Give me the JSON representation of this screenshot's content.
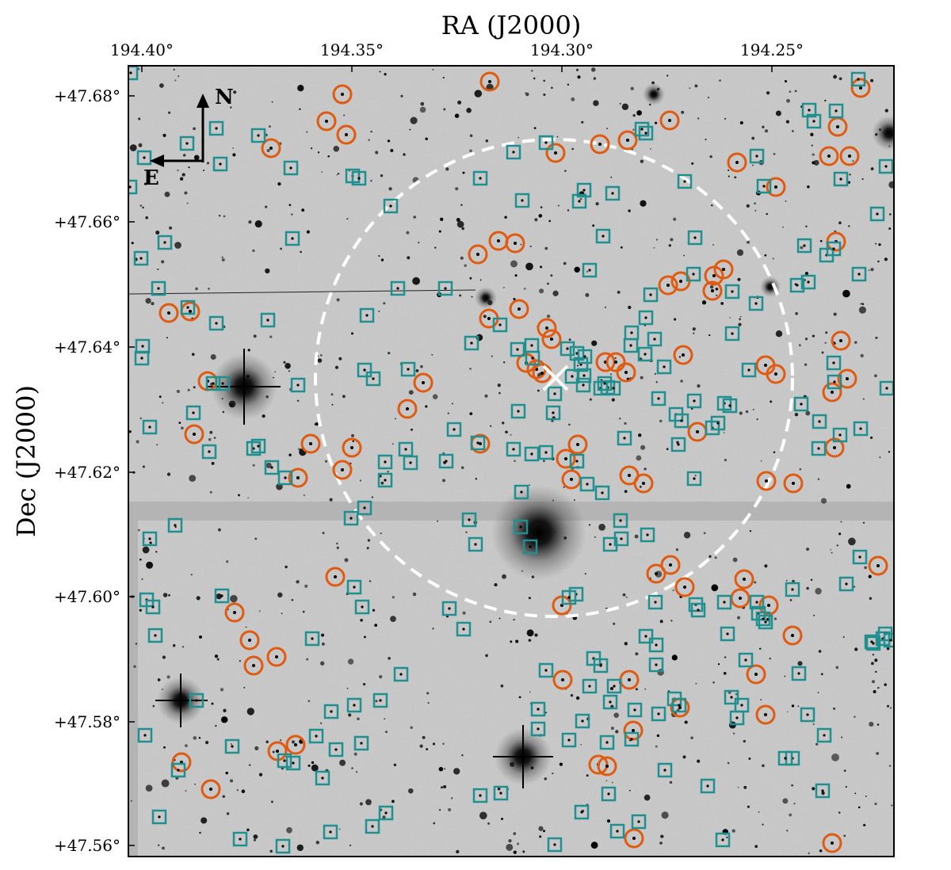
{
  "figure": {
    "x_axis_title": "RA (J2000)",
    "y_axis_title": "Dec (J2000)",
    "x_ticks": [
      "194.40°",
      "194.35°",
      "194.30°",
      "194.25°"
    ],
    "y_ticks": [
      "+47.68°",
      "+47.66°",
      "+47.64°",
      "+47.62°",
      "+47.60°",
      "+47.58°",
      "+47.56°"
    ],
    "compass": {
      "north": "N",
      "east": "E"
    }
  },
  "colors": {
    "circle_marker": "#e05a10",
    "square_marker": "#1f8f8f",
    "field_circle": "#ffffff",
    "center_cross": "#ffffff",
    "image_background": "#c9c9c9",
    "chip_gap": "#b4b4b4"
  },
  "markers": {
    "circles": [
      [
        618,
        103
      ],
      [
        432,
        119
      ],
      [
        412,
        153
      ],
      [
        437,
        170
      ],
      [
        342,
        187
      ],
      [
        845,
        152
      ],
      [
        792,
        177
      ],
      [
        757,
        182
      ],
      [
        701,
        193
      ],
      [
        1086,
        111
      ],
      [
        1057,
        160
      ],
      [
        1046,
        197
      ],
      [
        1072,
        197
      ],
      [
        979,
        236
      ],
      [
        930,
        205
      ],
      [
        629,
        304
      ],
      [
        650,
        307
      ],
      [
        603,
        321
      ],
      [
        843,
        360
      ],
      [
        859,
        355
      ],
      [
        901,
        348
      ],
      [
        913,
        340
      ],
      [
        899,
        367
      ],
      [
        1055,
        305
      ],
      [
        655,
        390
      ],
      [
        617,
        402
      ],
      [
        213,
        395
      ],
      [
        240,
        393
      ],
      [
        690,
        414
      ],
      [
        696,
        428
      ],
      [
        1061,
        430
      ],
      [
        862,
        448
      ],
      [
        664,
        458
      ],
      [
        677,
        466
      ],
      [
        684,
        471
      ],
      [
        764,
        457
      ],
      [
        777,
        457
      ],
      [
        790,
        470
      ],
      [
        966,
        461
      ],
      [
        979,
        472
      ],
      [
        534,
        483
      ],
      [
        1050,
        495
      ],
      [
        1069,
        478
      ],
      [
        262,
        481
      ],
      [
        514,
        516
      ],
      [
        245,
        548
      ],
      [
        392,
        560
      ],
      [
        444,
        565
      ],
      [
        606,
        560
      ],
      [
        729,
        561
      ],
      [
        714,
        579
      ],
      [
        721,
        605
      ],
      [
        880,
        545
      ],
      [
        1053,
        565
      ],
      [
        432,
        593
      ],
      [
        376,
        603
      ],
      [
        794,
        600
      ],
      [
        812,
        610
      ],
      [
        967,
        607
      ],
      [
        1001,
        610
      ],
      [
        423,
        728
      ],
      [
        828,
        724
      ],
      [
        846,
        713
      ],
      [
        864,
        741
      ],
      [
        939,
        731
      ],
      [
        934,
        755
      ],
      [
        970,
        764
      ],
      [
        709,
        764
      ],
      [
        1108,
        714
      ],
      [
        296,
        773
      ],
      [
        315,
        808
      ],
      [
        349,
        829
      ],
      [
        320,
        840
      ],
      [
        1000,
        802
      ],
      [
        954,
        851
      ],
      [
        710,
        858
      ],
      [
        794,
        858
      ],
      [
        858,
        893
      ],
      [
        966,
        902
      ],
      [
        799,
        922
      ],
      [
        350,
        948
      ],
      [
        373,
        940
      ],
      [
        229,
        962
      ],
      [
        755,
        965
      ],
      [
        766,
        967
      ],
      [
        266,
        996
      ],
      [
        800,
        1058
      ],
      [
        1050,
        1064
      ]
    ],
    "squares": [
      [
        165,
        92
      ],
      [
        273,
        162
      ],
      [
        236,
        181
      ],
      [
        182,
        199
      ],
      [
        278,
        207
      ],
      [
        164,
        236
      ],
      [
        326,
        171
      ],
      [
        367,
        212
      ],
      [
        445,
        222
      ],
      [
        453,
        225
      ],
      [
        493,
        260
      ],
      [
        648,
        192
      ],
      [
        689,
        180
      ],
      [
        606,
        225
      ],
      [
        659,
        253
      ],
      [
        731,
        254
      ],
      [
        737,
        240
      ],
      [
        773,
        244
      ],
      [
        761,
        298
      ],
      [
        744,
        341
      ],
      [
        810,
        163
      ],
      [
        815,
        168
      ],
      [
        864,
        229
      ],
      [
        955,
        197
      ],
      [
        1021,
        139
      ],
      [
        1055,
        140
      ],
      [
        1027,
        153
      ],
      [
        1083,
        100
      ],
      [
        1118,
        210
      ],
      [
        964,
        235
      ],
      [
        1061,
        226
      ],
      [
        1107,
        270
      ],
      [
        1015,
        310
      ],
      [
        1043,
        322
      ],
      [
        1052,
        314
      ],
      [
        1084,
        346
      ],
      [
        1006,
        360
      ],
      [
        1020,
        356
      ],
      [
        877,
        300
      ],
      [
        875,
        346
      ],
      [
        924,
        368
      ],
      [
        821,
        372
      ],
      [
        502,
        364
      ],
      [
        562,
        364
      ],
      [
        369,
        301
      ],
      [
        208,
        306
      ],
      [
        178,
        326
      ],
      [
        200,
        364
      ],
      [
        237,
        388
      ],
      [
        273,
        408
      ],
      [
        338,
        404
      ],
      [
        463,
        398
      ],
      [
        180,
        437
      ],
      [
        179,
        452
      ],
      [
        269,
        484
      ],
      [
        281,
        484
      ],
      [
        376,
        486
      ],
      [
        460,
        467
      ],
      [
        471,
        478
      ],
      [
        515,
        466
      ],
      [
        595,
        433
      ],
      [
        631,
        410
      ],
      [
        653,
        441
      ],
      [
        671,
        436
      ],
      [
        672,
        452
      ],
      [
        700,
        497
      ],
      [
        716,
        440
      ],
      [
        728,
        446
      ],
      [
        733,
        460
      ],
      [
        738,
        450
      ],
      [
        737,
        474
      ],
      [
        722,
        475
      ],
      [
        736,
        486
      ],
      [
        758,
        490
      ],
      [
        763,
        484
      ],
      [
        767,
        489
      ],
      [
        774,
        490
      ],
      [
        796,
        436
      ],
      [
        814,
        447
      ],
      [
        797,
        420
      ],
      [
        826,
        428
      ],
      [
        815,
        401
      ],
      [
        838,
        463
      ],
      [
        831,
        503
      ],
      [
        876,
        506
      ],
      [
        853,
        523
      ],
      [
        860,
        531
      ],
      [
        914,
        509
      ],
      [
        921,
        512
      ],
      [
        924,
        421
      ],
      [
        954,
        383
      ],
      [
        945,
        467
      ],
      [
        1011,
        510
      ],
      [
        1052,
        458
      ],
      [
        1053,
        482
      ],
      [
        1119,
        490
      ],
      [
        1086,
        541
      ],
      [
        654,
        519
      ],
      [
        573,
        542
      ],
      [
        603,
        559
      ],
      [
        648,
        567
      ],
      [
        671,
        573
      ],
      [
        689,
        571
      ],
      [
        728,
        582
      ],
      [
        741,
        611
      ],
      [
        760,
        622
      ],
      [
        658,
        621
      ],
      [
        698,
        521
      ],
      [
        788,
        553
      ],
      [
        856,
        561
      ],
      [
        876,
        604
      ],
      [
        899,
        540
      ],
      [
        906,
        534
      ],
      [
        1033,
        566
      ],
      [
        1060,
        549
      ],
      [
        1034,
        532
      ],
      [
        189,
        539
      ],
      [
        244,
        521
      ],
      [
        264,
        570
      ],
      [
        320,
        566
      ],
      [
        326,
        563
      ],
      [
        343,
        590
      ],
      [
        360,
        603
      ],
      [
        486,
        583
      ],
      [
        486,
        606
      ],
      [
        512,
        567
      ],
      [
        518,
        584
      ],
      [
        563,
        582
      ],
      [
        443,
        654
      ],
      [
        460,
        641
      ],
      [
        592,
        656
      ],
      [
        600,
        687
      ],
      [
        657,
        665
      ],
      [
        669,
        690
      ],
      [
        783,
        657
      ],
      [
        784,
        680
      ],
      [
        770,
        687
      ],
      [
        817,
        675
      ],
      [
        221,
        663
      ],
      [
        189,
        680
      ],
      [
        185,
        757
      ],
      [
        193,
        766
      ],
      [
        196,
        802
      ],
      [
        280,
        752
      ],
      [
        394,
        806
      ],
      [
        447,
        741
      ],
      [
        457,
        766
      ],
      [
        567,
        768
      ],
      [
        585,
        794
      ],
      [
        727,
        750
      ],
      [
        718,
        754
      ],
      [
        827,
        760
      ],
      [
        878,
        763
      ],
      [
        881,
        770
      ],
      [
        914,
        760
      ],
      [
        955,
        760
      ],
      [
        957,
        774
      ],
      [
        963,
        781
      ],
      [
        966,
        785
      ],
      [
        1000,
        744
      ],
      [
        1068,
        737
      ],
      [
        1085,
        703
      ],
      [
        918,
        800
      ],
      [
        941,
        833
      ],
      [
        1008,
        850
      ],
      [
        1100,
        810
      ],
      [
        1114,
        806
      ],
      [
        1117,
        800
      ],
      [
        1124,
        808
      ],
      [
        1102,
        812
      ],
      [
        689,
        846
      ],
      [
        749,
        831
      ],
      [
        758,
        840
      ],
      [
        744,
        866
      ],
      [
        775,
        866
      ],
      [
        815,
        803
      ],
      [
        828,
        814
      ],
      [
        828,
        839
      ],
      [
        770,
        886
      ],
      [
        801,
        896
      ],
      [
        831,
        901
      ],
      [
        851,
        882
      ],
      [
        857,
        890
      ],
      [
        735,
        910
      ],
      [
        679,
        895
      ],
      [
        679,
        920
      ],
      [
        718,
        934
      ],
      [
        766,
        937
      ],
      [
        797,
        933
      ],
      [
        839,
        972
      ],
      [
        923,
        880
      ],
      [
        936,
        890
      ],
      [
        930,
        906
      ],
      [
        1019,
        902
      ],
      [
        1040,
        928
      ],
      [
        1000,
        957
      ],
      [
        991,
        957
      ],
      [
        893,
        992
      ],
      [
        1038,
        998
      ],
      [
        768,
        1002
      ],
      [
        779,
        1049
      ],
      [
        806,
        1037
      ],
      [
        700,
        1066
      ],
      [
        912,
        1060
      ],
      [
        506,
        851
      ],
      [
        480,
        884
      ],
      [
        447,
        890
      ],
      [
        418,
        898
      ],
      [
        399,
        929
      ],
      [
        424,
        946
      ],
      [
        456,
        938
      ],
      [
        407,
        982
      ],
      [
        370,
        963
      ],
      [
        359,
        960
      ],
      [
        293,
        942
      ],
      [
        248,
        884
      ],
      [
        183,
        928
      ],
      [
        225,
        972
      ],
      [
        201,
        1031
      ],
      [
        303,
        1059
      ],
      [
        357,
        1068
      ],
      [
        417,
        1050
      ],
      [
        470,
        1043
      ],
      [
        487,
        1026
      ],
      [
        606,
        1004
      ],
      [
        632,
        1001
      ],
      [
        734,
        1025
      ]
    ]
  },
  "annotations": {
    "field_circle": {
      "style": "dashed"
    },
    "center_marker": "cross"
  }
}
